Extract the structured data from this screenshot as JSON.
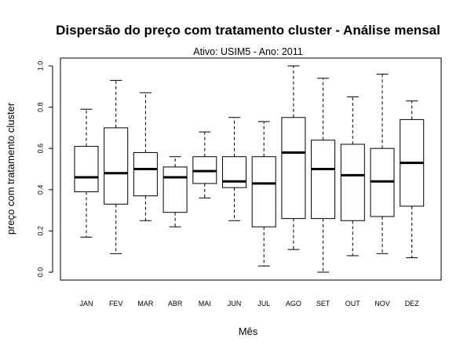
{
  "chart_data": {
    "type": "box",
    "title": "Dispersão do  preço com tratamento cluster  - Análise mensal",
    "subtitle": "Ativo: USIM5 - Ano: 2011",
    "xlabel": "Mês",
    "ylabel": "preço com tratamento cluster",
    "ylim": [
      0,
      1
    ],
    "yticks": [
      "0.0",
      "0.2",
      "0.4",
      "0.6",
      "0.8",
      "1.0"
    ],
    "grid": false,
    "categories": [
      "JAN",
      "FEV",
      "MAR",
      "ABR",
      "MAI",
      "JUN",
      "JUL",
      "AGO",
      "SET",
      "OUT",
      "NOV",
      "DEZ"
    ],
    "boxes": [
      {
        "min": 0.17,
        "q1": 0.39,
        "median": 0.46,
        "q3": 0.61,
        "max": 0.79
      },
      {
        "min": 0.09,
        "q1": 0.33,
        "median": 0.48,
        "q3": 0.7,
        "max": 0.93
      },
      {
        "min": 0.25,
        "q1": 0.37,
        "median": 0.5,
        "q3": 0.58,
        "max": 0.87
      },
      {
        "min": 0.22,
        "q1": 0.29,
        "median": 0.46,
        "q3": 0.51,
        "max": 0.56
      },
      {
        "min": 0.36,
        "q1": 0.43,
        "median": 0.49,
        "q3": 0.56,
        "max": 0.68
      },
      {
        "min": 0.25,
        "q1": 0.41,
        "median": 0.44,
        "q3": 0.56,
        "max": 0.75
      },
      {
        "min": 0.03,
        "q1": 0.22,
        "median": 0.43,
        "q3": 0.56,
        "max": 0.73
      },
      {
        "min": 0.11,
        "q1": 0.26,
        "median": 0.58,
        "q3": 0.75,
        "max": 1.0
      },
      {
        "min": 0.0,
        "q1": 0.26,
        "median": 0.5,
        "q3": 0.64,
        "max": 0.94
      },
      {
        "min": 0.08,
        "q1": 0.25,
        "median": 0.47,
        "q3": 0.62,
        "max": 0.85
      },
      {
        "min": 0.09,
        "q1": 0.27,
        "median": 0.44,
        "q3": 0.6,
        "max": 0.96
      },
      {
        "min": 0.07,
        "q1": 0.32,
        "median": 0.53,
        "q3": 0.74,
        "max": 0.83
      }
    ]
  }
}
